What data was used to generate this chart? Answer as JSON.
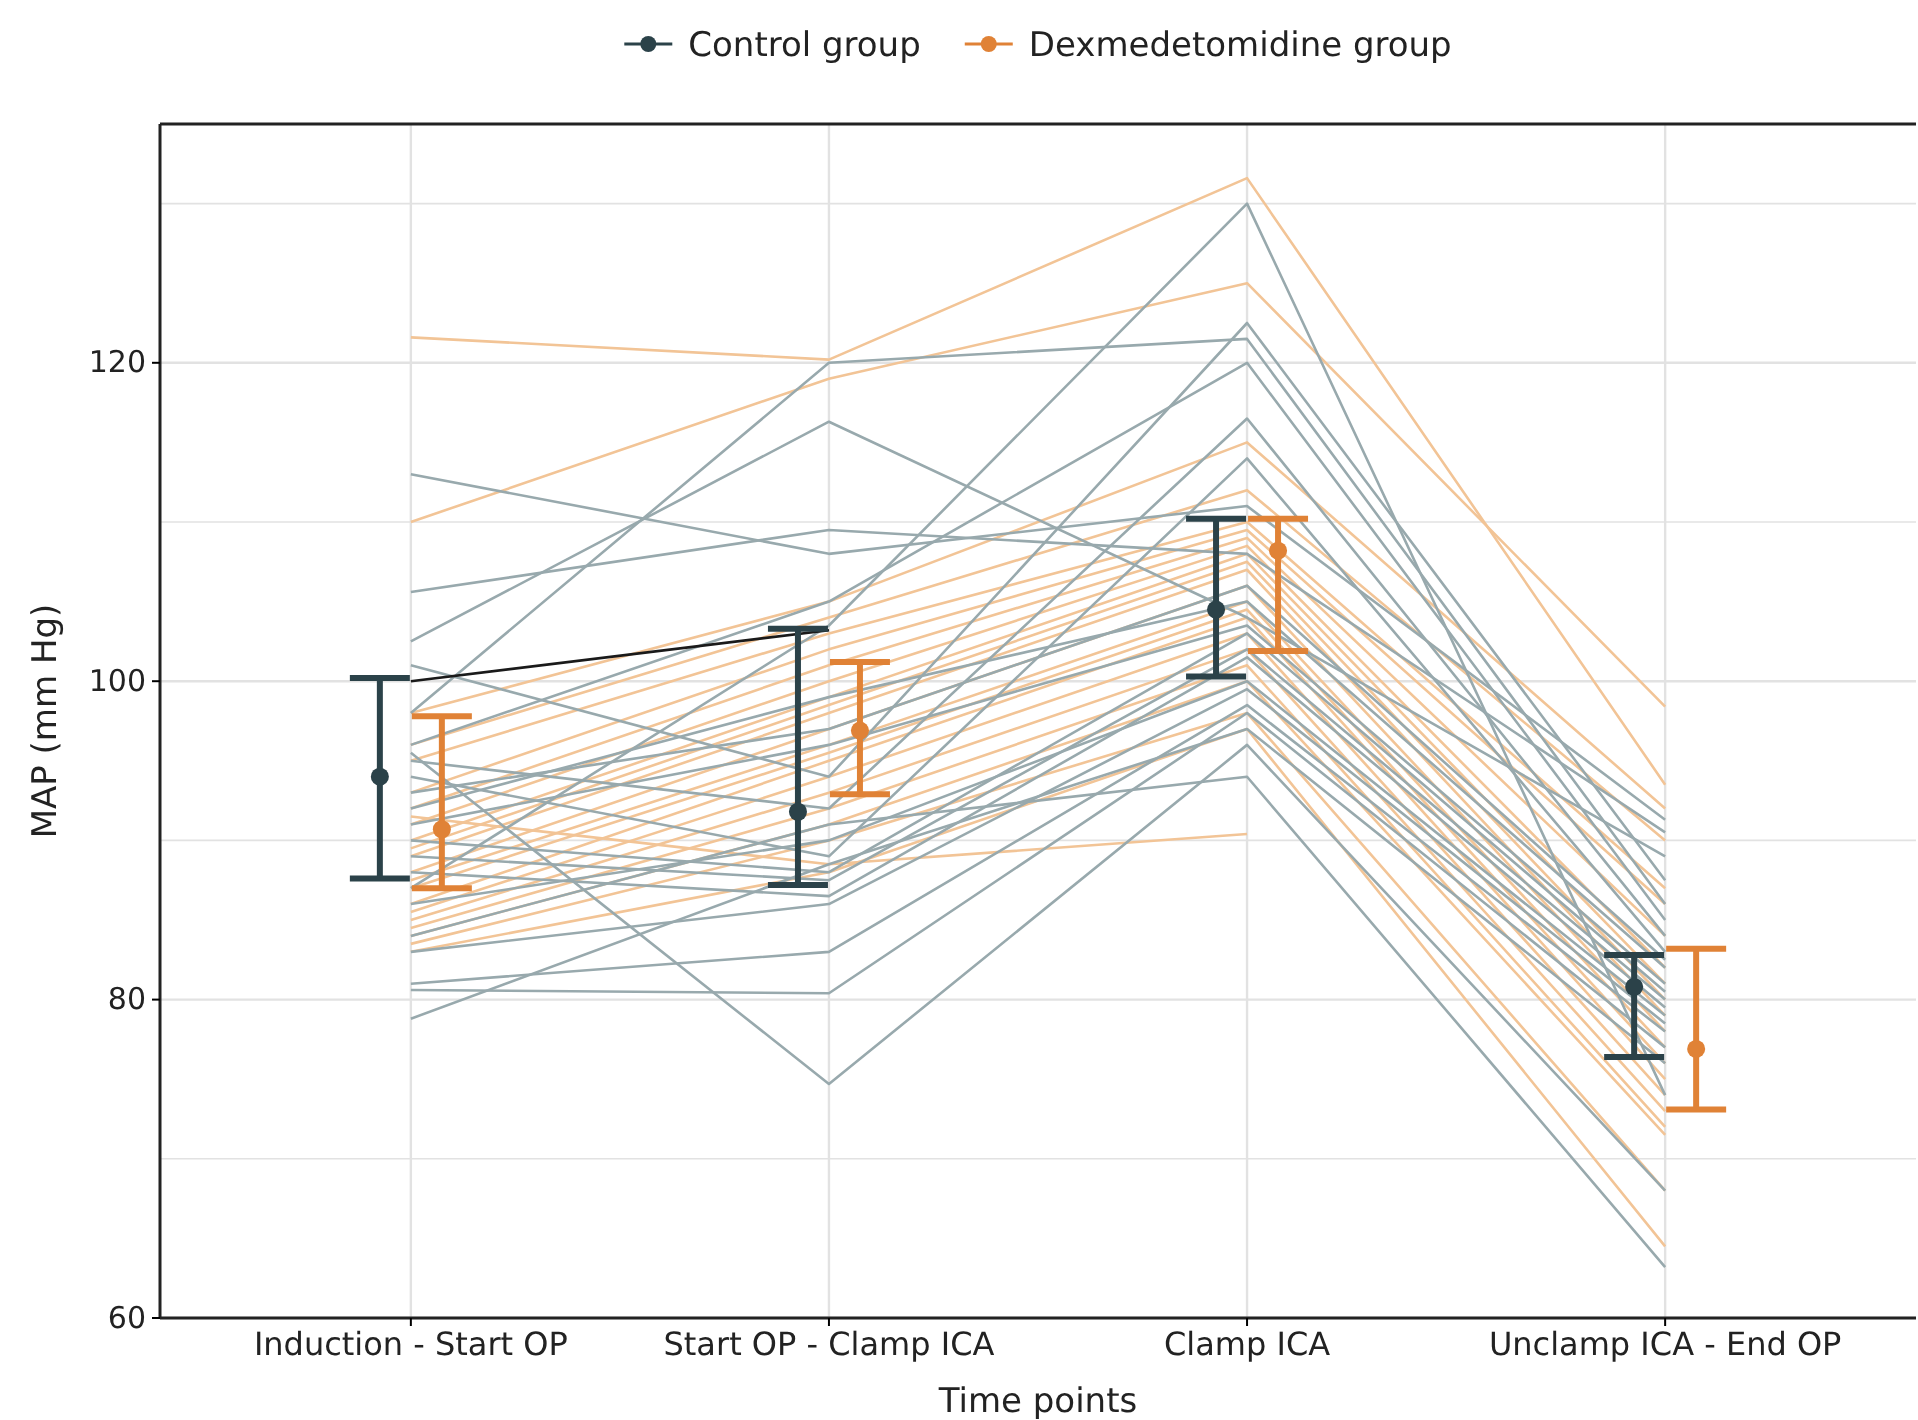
{
  "chart_data": {
    "type": "line",
    "xlabel": "Time points",
    "ylabel": "MAP (mm Hg)",
    "categories": [
      "Induction - Start OP",
      "Start OP - Clamp ICA",
      "Clamp ICA",
      "Unclamp ICA - End OP"
    ],
    "ylim": [
      60,
      135
    ],
    "yticks": [
      60,
      {
        "value": 70,
        "label": null
      },
      80,
      {
        "value": 90,
        "label": null
      },
      100,
      {
        "value": 110,
        "label": null
      },
      120,
      {
        "value": 130,
        "label": null
      }
    ],
    "grid": true,
    "legend": "top",
    "line_style": "solid",
    "series": [
      {
        "color": "#f2c496",
        "values": [
          121.6,
          120.2,
          131.6,
          93.5
        ]
      },
      {
        "color": "#f2c496",
        "values": [
          110,
          119,
          125,
          98.4
        ]
      },
      {
        "color": "#f2c496",
        "values": [
          98,
          105,
          115,
          92
        ]
      },
      {
        "color": "#f2c496",
        "values": [
          96,
          104,
          112,
          90
        ]
      },
      {
        "color": "#f2c496",
        "values": [
          95,
          103,
          110,
          87
        ]
      },
      {
        "color": "#f2c496",
        "values": [
          93,
          102,
          109.5,
          86
        ]
      },
      {
        "color": "#f2c496",
        "values": [
          92,
          101,
          109,
          84
        ]
      },
      {
        "color": "#f2c496",
        "values": [
          91,
          100,
          108.5,
          82
        ]
      },
      {
        "color": "#f2c496",
        "values": [
          90,
          99,
          108,
          81
        ]
      },
      {
        "color": "#f2c496",
        "values": [
          89.5,
          98.5,
          107.5,
          80
        ]
      },
      {
        "color": "#f2c496",
        "values": [
          89,
          98,
          107,
          79
        ]
      },
      {
        "color": "#f2c496",
        "values": [
          88,
          97,
          106,
          78
        ]
      },
      {
        "color": "#f2c496",
        "values": [
          87.5,
          96,
          105,
          77
        ]
      },
      {
        "color": "#f2c496",
        "values": [
          87,
          95.5,
          104.5,
          76
        ]
      },
      {
        "color": "#f2c496",
        "values": [
          86,
          95,
          104,
          75
        ]
      },
      {
        "color": "#f2c496",
        "values": [
          85.5,
          94,
          103,
          74
        ]
      },
      {
        "color": "#f2c496",
        "values": [
          85,
          93,
          102,
          73
        ]
      },
      {
        "color": "#f2c496",
        "values": [
          84.5,
          92,
          101,
          72
        ]
      },
      {
        "color": "#f2c496",
        "values": [
          84,
          91,
          100,
          71.5
        ]
      },
      {
        "color": "#f2c496",
        "values": [
          83.5,
          90,
          98,
          68
        ]
      },
      {
        "color": "#f2c496",
        "values": [
          83,
          88,
          97,
          64.5
        ]
      },
      {
        "color": "#f2c496",
        "values": [
          91.5,
          88.5,
          90.4,
          null
        ]
      },
      {
        "color": "#98a9ad",
        "values": [
          113,
          108,
          111,
          91.3
        ]
      },
      {
        "color": "#98a9ad",
        "values": [
          105.6,
          109.5,
          108,
          90.5
        ]
      },
      {
        "color": "#98a9ad",
        "values": [
          102.5,
          116.3,
          104,
          89
        ]
      },
      {
        "color": "#98a9ad",
        "values": [
          101,
          94,
          122.5,
          87.5
        ]
      },
      {
        "color": "#98a9ad",
        "values": [
          98,
          120,
          121.5,
          86
        ]
      },
      {
        "color": "#98a9ad",
        "values": [
          96,
          105,
          120,
          85
        ]
      },
      {
        "color": "#98a9ad",
        "values": [
          95,
          92,
          116.5,
          84
        ]
      },
      {
        "color": "#98a9ad",
        "values": [
          94,
          89,
          114,
          83
        ]
      },
      {
        "color": "#98a9ad",
        "values": [
          93,
          97,
          106,
          82.5
        ]
      },
      {
        "color": "#98a9ad",
        "values": [
          92,
          99,
          105,
          82
        ]
      },
      {
        "color": "#98a9ad",
        "values": [
          91,
          96,
          103.5,
          81
        ]
      },
      {
        "color": "#98a9ad",
        "values": [
          90,
          88,
          103,
          80.5
        ]
      },
      {
        "color": "#98a9ad",
        "values": [
          89,
          87.5,
          102,
          80
        ]
      },
      {
        "color": "#98a9ad",
        "values": [
          88,
          86.5,
          101.5,
          79.5
        ]
      },
      {
        "color": "#98a9ad",
        "values": [
          86,
          90,
          100,
          79
        ]
      },
      {
        "color": "#98a9ad",
        "values": [
          83,
          86,
          99.5,
          78.5
        ]
      },
      {
        "color": "#98a9ad",
        "values": [
          81,
          83,
          98.5,
          78
        ]
      },
      {
        "color": "#98a9ad",
        "values": [
          80.6,
          80.4,
          98,
          77
        ]
      },
      {
        "color": "#98a9ad",
        "values": [
          78.8,
          88.5,
          97,
          76
        ]
      },
      {
        "color": "#98a9ad",
        "values": [
          95.5,
          74.7,
          96,
          68
        ]
      },
      {
        "color": "#98a9ad",
        "values": [
          84,
          91,
          94,
          63.2
        ]
      },
      {
        "color": "#98a9ad",
        "values": [
          87,
          103.5,
          130,
          74
        ]
      },
      {
        "color": "#1a1a1a",
        "values": [
          100,
          103.2,
          null,
          null
        ]
      },
      {
        "type": "scatter",
        "name": "Control group",
        "color": "#2b4249",
        "marker": "circle",
        "values": [
          94.0,
          91.8,
          104.5,
          80.8
        ],
        "errors": [
          [
            87.6,
            100.2
          ],
          [
            87.2,
            103.3
          ],
          [
            100.3,
            110.2
          ],
          [
            76.4,
            82.8
          ]
        ]
      },
      {
        "type": "scatter",
        "name": "Dexmedetomidine group",
        "color": "#e08236",
        "marker": "circle",
        "values": [
          90.7,
          96.9,
          108.2,
          76.9
        ],
        "errors": [
          [
            87.0,
            97.8
          ],
          [
            92.9,
            101.2
          ],
          [
            101.9,
            110.2
          ],
          [
            73.1,
            83.2
          ]
        ]
      }
    ]
  }
}
